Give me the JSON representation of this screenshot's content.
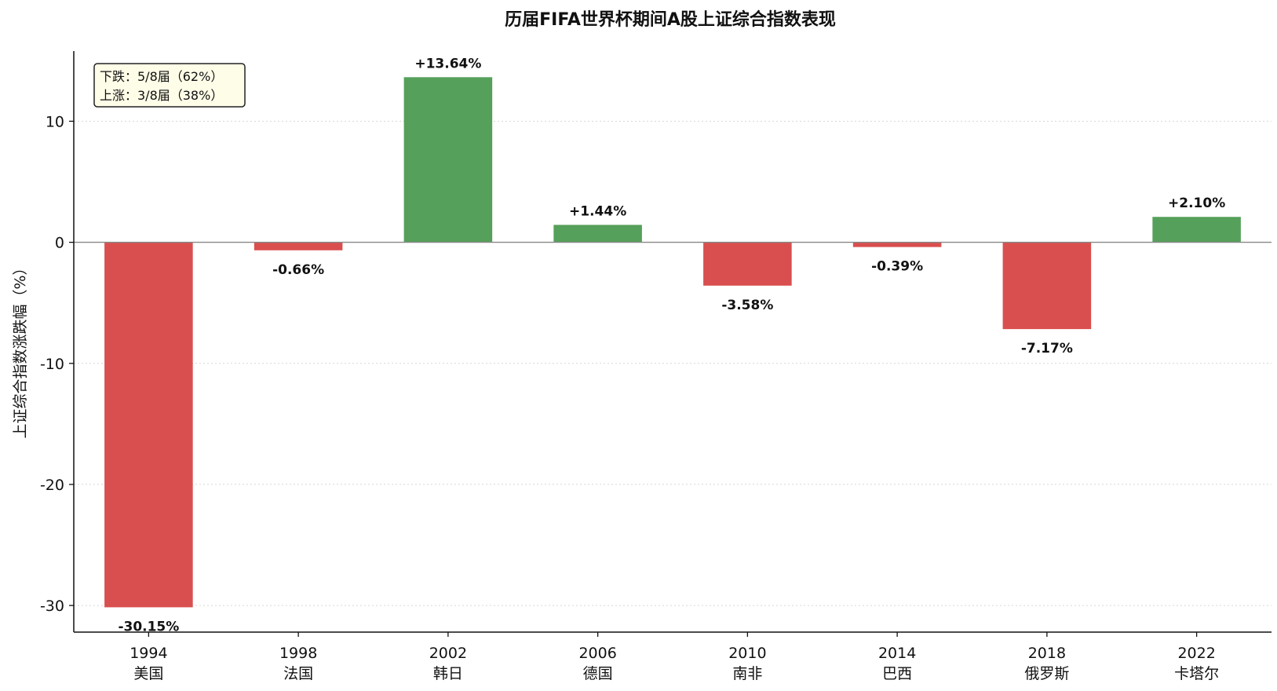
{
  "chart_data": {
    "type": "bar",
    "title": "历届FIFA世界杯期间A股上证综合指数表现",
    "ylabel": "上证综合指数涨跌幅（%）",
    "xlabel": "",
    "categories": [
      "1994\n美国",
      "1998\n法国",
      "2002\n韩日",
      "2006\n德国",
      "2010\n南非",
      "2014\n巴西",
      "2018\n俄罗斯",
      "2022\n卡塔尔"
    ],
    "years": [
      "1994",
      "1998",
      "2002",
      "2006",
      "2010",
      "2014",
      "2018",
      "2022"
    ],
    "hosts": [
      "美国",
      "法国",
      "韩日",
      "德国",
      "南非",
      "巴西",
      "俄罗斯",
      "卡塔尔"
    ],
    "values": [
      -30.15,
      -0.66,
      13.64,
      1.44,
      -3.58,
      -0.39,
      -7.17,
      2.1
    ],
    "value_labels": [
      "-30.15%",
      "-0.66%",
      "+13.64%",
      "+1.44%",
      "-3.58%",
      "-0.39%",
      "-7.17%",
      "+2.10%"
    ],
    "ylim": [
      -32.2,
      15.8
    ],
    "yticks": [
      10,
      0,
      -10,
      -20,
      -30
    ],
    "ytick_labels": [
      "10",
      "0",
      "-10",
      "-20",
      "-30"
    ],
    "grid": true,
    "colors": {
      "positive": "#55a05a",
      "negative": "#d94f4f"
    },
    "legend": {
      "placement": "top-left",
      "lines": [
        "下跌：5/8届（62%）",
        "上涨：3/8届（38%）"
      ]
    }
  }
}
